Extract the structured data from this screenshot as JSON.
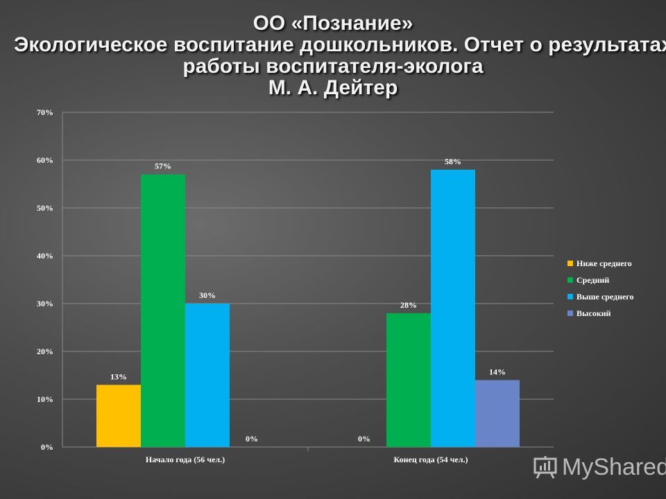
{
  "title_lines": [
    "ОО «Познание»",
    "Экологическое воспитание дошкольников. Отчет о результатах",
    "работы воспитателя-эколога",
    "М. А. Дейтер"
  ],
  "chart_data": {
    "type": "bar",
    "categories": [
      "Начало года (56 чел.)",
      "Конец года (54 чел.)"
    ],
    "series": [
      {
        "name": "Ниже среднего",
        "values": [
          13,
          0
        ],
        "color": "#ffc000"
      },
      {
        "name": "Средний",
        "values": [
          57,
          28
        ],
        "color": "#00b050"
      },
      {
        "name": "Выше среднего",
        "values": [
          30,
          58
        ],
        "color": "#00b0f0"
      },
      {
        "name": "Высокий",
        "values": [
          0,
          14
        ],
        "color": "#6a84c8"
      }
    ],
    "y_ticks": [
      "0%",
      "10%",
      "20%",
      "30%",
      "40%",
      "50%",
      "60%",
      "70%"
    ],
    "ylim": [
      0,
      70
    ],
    "y_unit": "%",
    "grid": true,
    "legend_position": "right"
  },
  "watermark": "MyShared"
}
